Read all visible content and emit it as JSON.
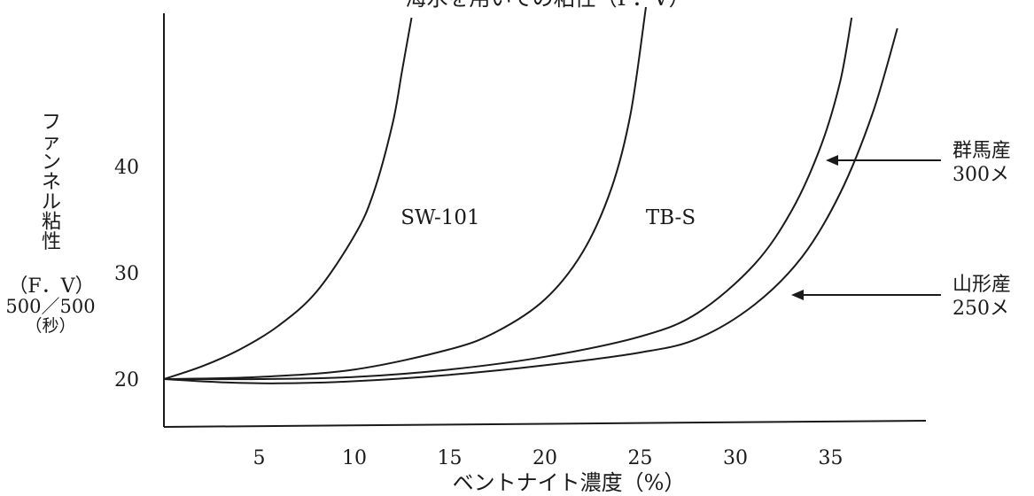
{
  "chart_data": {
    "type": "line",
    "title": "海水を用いての粘性（F．V）",
    "xlabel": "ベントナイト濃度（%）",
    "ylabel": {
      "vertical": [
        "フ",
        "ァ",
        "ン",
        "ネ",
        "ル",
        "粘",
        "性"
      ],
      "line1": "（F．V）",
      "line2": "500／500",
      "line3": "（秒）"
    },
    "xlim": [
      0,
      40
    ],
    "ylim": [
      17,
      55
    ],
    "x_ticks": [
      "5",
      "10",
      "15",
      "20",
      "25",
      "30",
      "35"
    ],
    "x_tick_values": [
      5,
      10,
      15,
      20,
      25,
      30,
      35
    ],
    "y_ticks": [
      "20",
      "30",
      "40"
    ],
    "y_tick_values": [
      20,
      30,
      40
    ],
    "grid": false,
    "series": [
      {
        "name": "SW-101",
        "x": [
          0,
          2,
          4,
          6,
          8,
          10,
          11,
          12,
          12.5,
          13
        ],
        "y": [
          20,
          21.2,
          22.8,
          25,
          28.2,
          33.5,
          37.5,
          44,
          49,
          54
        ]
      },
      {
        "name": "TB-S",
        "x": [
          0,
          5,
          10,
          15,
          17.5,
          20,
          22,
          23.5,
          24.5,
          25.3
        ],
        "y": [
          20,
          20.2,
          20.9,
          22.8,
          24.5,
          27.5,
          32,
          38,
          45,
          55
        ]
      },
      {
        "name": "群馬産 300メ",
        "label_lines": [
          "群馬産",
          "300メ"
        ],
        "x": [
          0,
          5,
          10,
          15,
          20,
          25,
          28,
          31,
          33,
          34.5,
          35.5,
          36.1
        ],
        "y": [
          20,
          20,
          20.2,
          20.9,
          22.1,
          24,
          26.2,
          30.8,
          36,
          42,
          48,
          54
        ]
      },
      {
        "name": "山形産 250メ",
        "label_lines": [
          "山形産",
          "250メ"
        ],
        "x": [
          0,
          3,
          6,
          10,
          15,
          20,
          25,
          28,
          31,
          33.5,
          35.5,
          37.2,
          38.5
        ],
        "y": [
          20,
          19.7,
          19.6,
          19.8,
          20.4,
          21.3,
          22.5,
          23.8,
          27,
          31.5,
          37.5,
          45,
          53
        ]
      }
    ]
  }
}
